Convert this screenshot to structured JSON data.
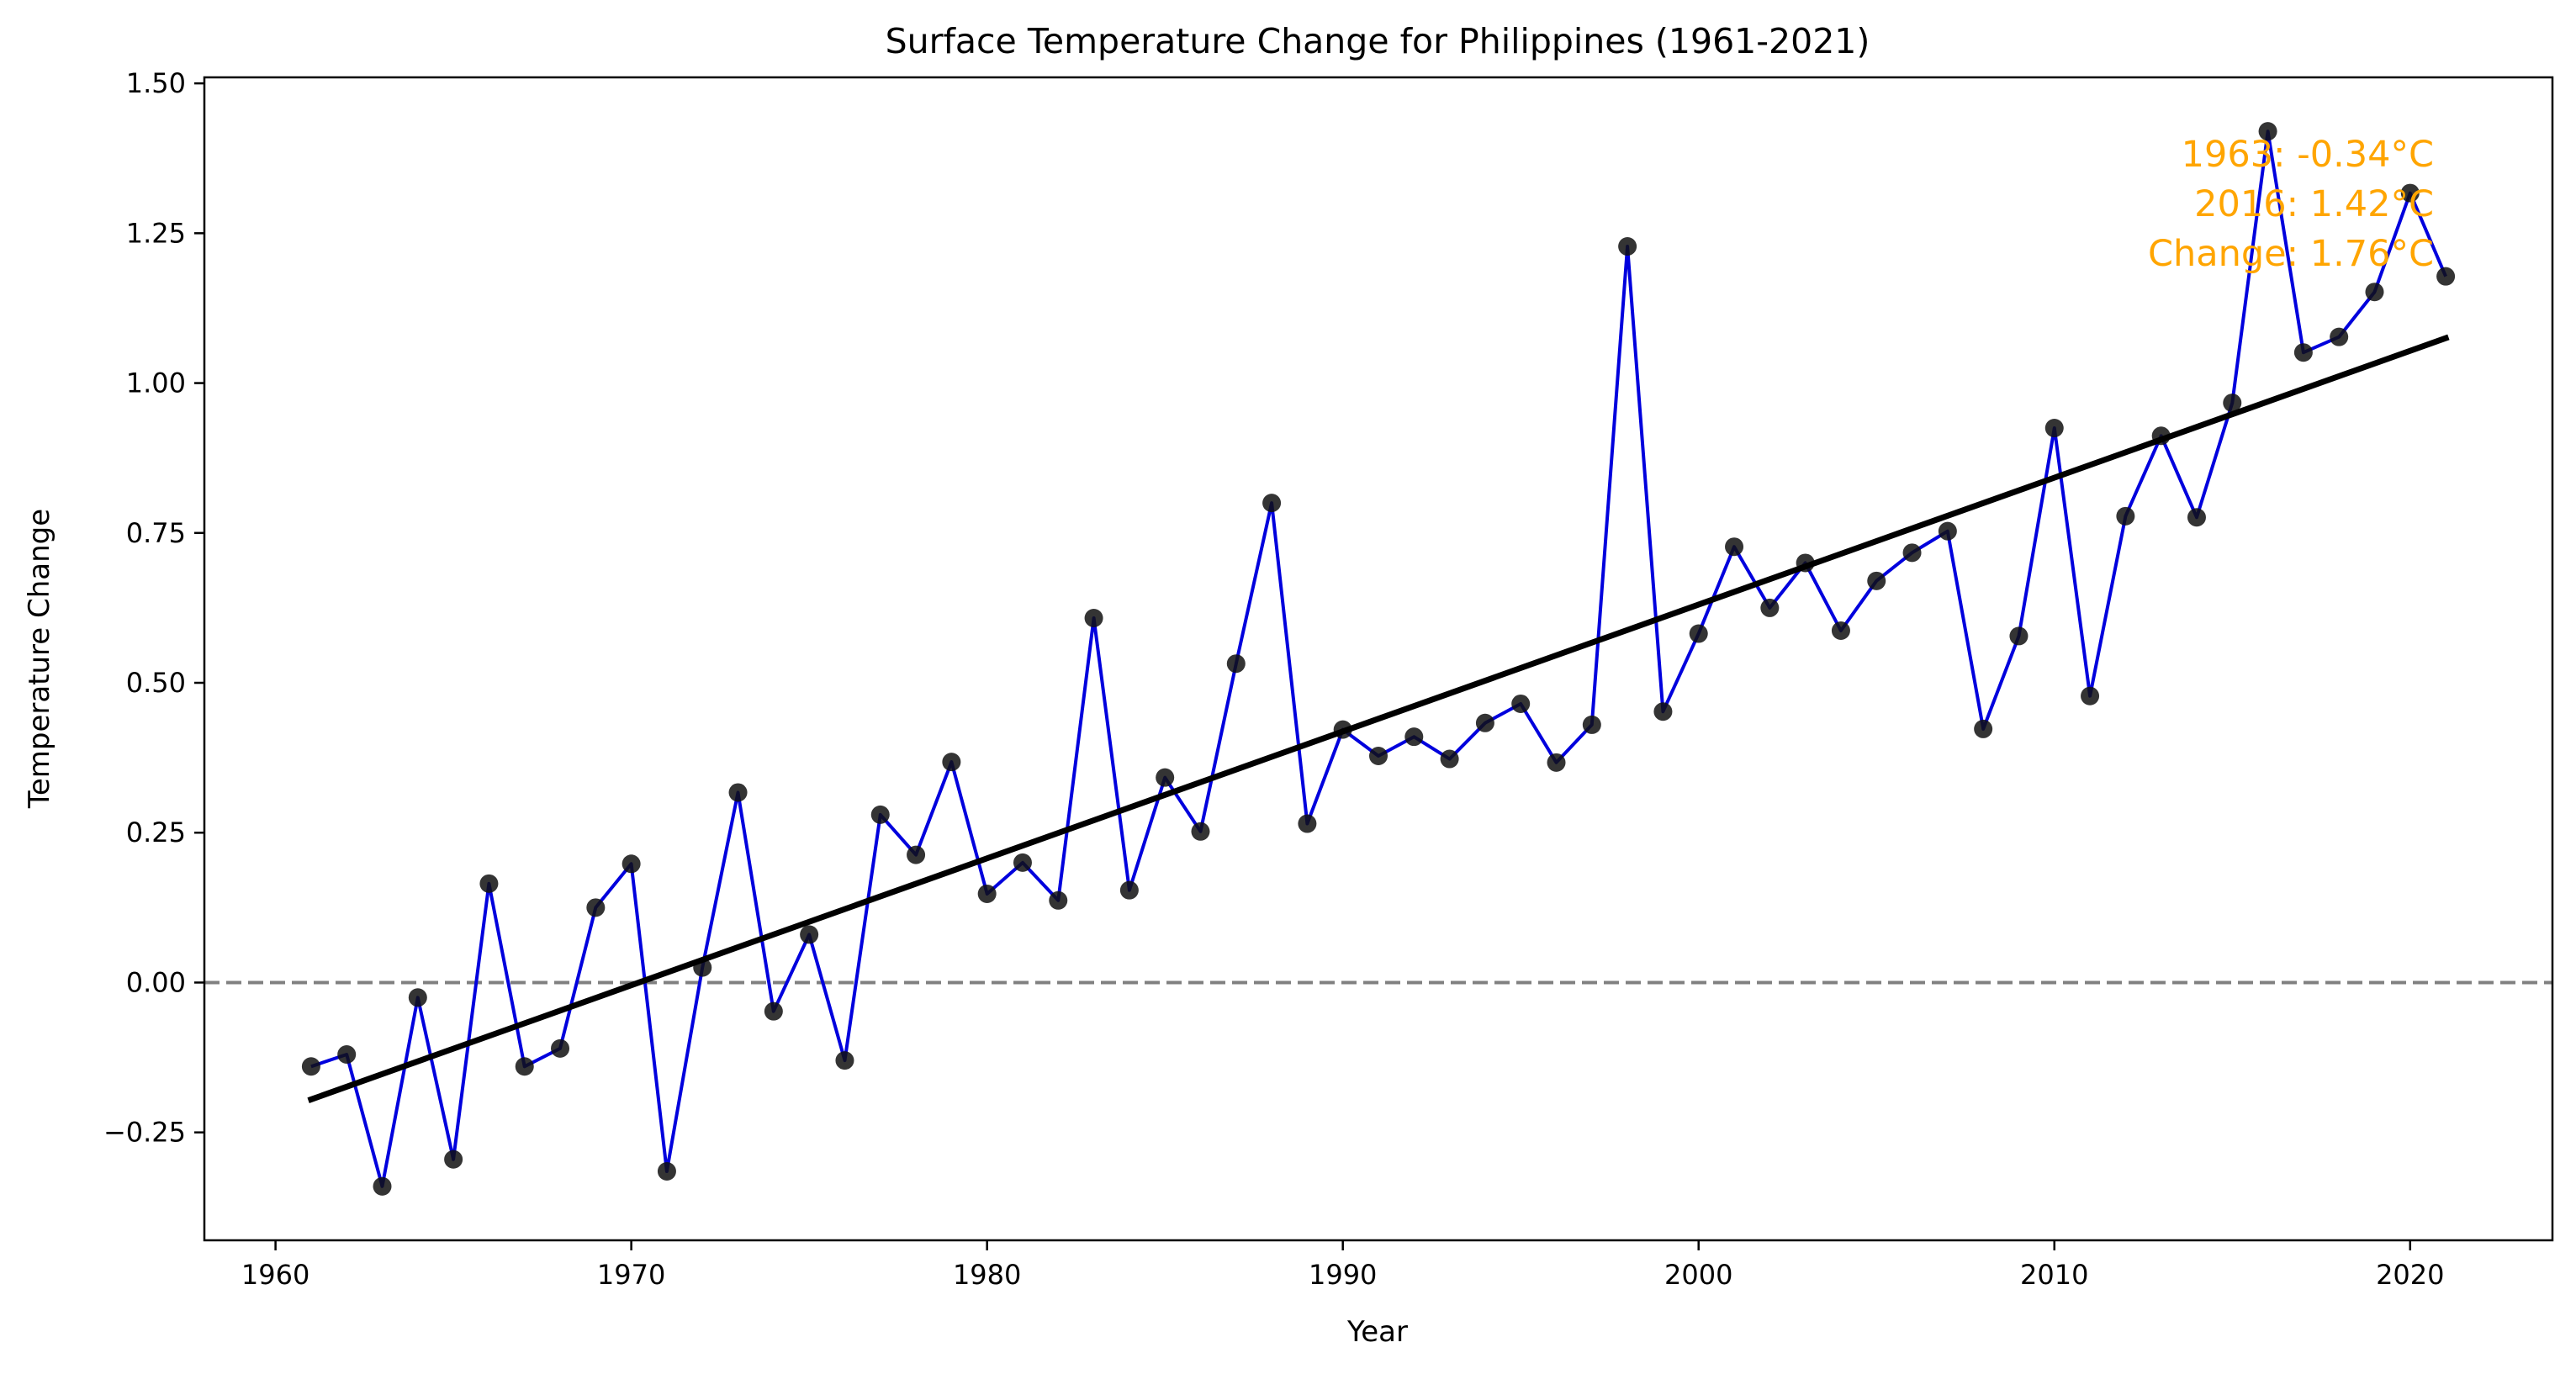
{
  "chart_data": {
    "type": "line",
    "title": "Surface Temperature Change for Philippines (1961-2021)",
    "xlabel": "Year",
    "ylabel": "Temperature Change",
    "xlim": [
      1958.0,
      2024.0
    ],
    "ylim": [
      -0.43,
      1.51
    ],
    "xticks": [
      1960,
      1970,
      1980,
      1990,
      2000,
      2010,
      2020
    ],
    "yticks": [
      -0.25,
      0.0,
      0.25,
      0.5,
      0.75,
      1.0,
      1.25,
      1.5
    ],
    "xtick_labels": [
      "1960",
      "1970",
      "1980",
      "1990",
      "2000",
      "2010",
      "2020"
    ],
    "ytick_labels": [
      "−0.25",
      "0.00",
      "0.25",
      "0.50",
      "0.75",
      "1.00",
      "1.25",
      "1.50"
    ],
    "grid": false,
    "colors": {
      "line": "#0000dd",
      "markers": "#111111",
      "trend": "#000000",
      "zero_line": "#808080",
      "annotation": "#FFA500"
    },
    "series": [
      {
        "x": [
          1961,
          1962,
          1963,
          1964,
          1965,
          1966,
          1967,
          1968,
          1969,
          1970,
          1971,
          1972,
          1973,
          1974,
          1975,
          1976,
          1977,
          1978,
          1979,
          1980,
          1981,
          1982,
          1983,
          1984,
          1985,
          1986,
          1987,
          1988,
          1989,
          1990,
          1991,
          1992,
          1993,
          1994,
          1995,
          1996,
          1997,
          1998,
          1999,
          2000,
          2001,
          2002,
          2003,
          2004,
          2005,
          2006,
          2007,
          2008,
          2009,
          2010,
          2011,
          2012,
          2013,
          2014,
          2015,
          2016,
          2017,
          2018,
          2019,
          2020,
          2021
        ],
        "values": [
          -0.14,
          -0.12,
          -0.34,
          -0.025,
          -0.295,
          0.165,
          -0.14,
          -0.11,
          0.125,
          0.198,
          -0.315,
          0.025,
          0.317,
          -0.048,
          0.08,
          -0.13,
          0.28,
          0.213,
          0.368,
          0.148,
          0.2,
          0.137,
          0.608,
          0.154,
          0.342,
          0.252,
          0.532,
          0.8,
          0.265,
          0.422,
          0.378,
          0.41,
          0.373,
          0.433,
          0.465,
          0.367,
          0.43,
          1.228,
          0.452,
          0.582,
          0.727,
          0.625,
          0.7,
          0.587,
          0.67,
          0.717,
          0.753,
          0.423,
          0.578,
          0.925,
          0.478,
          0.778,
          0.912,
          0.776,
          0.967,
          1.42,
          1.051,
          1.077,
          1.152,
          1.317,
          1.178
        ]
      }
    ],
    "trend_line": {
      "x": [
        1961,
        2021
      ],
      "y": [
        -0.195,
        1.075
      ]
    },
    "reference_line": {
      "y": 0.0,
      "style": "dashed"
    },
    "annotation_lines": [
      "1963: -0.34°C",
      "2016: 1.42°C",
      "Change: 1.76°C"
    ]
  }
}
